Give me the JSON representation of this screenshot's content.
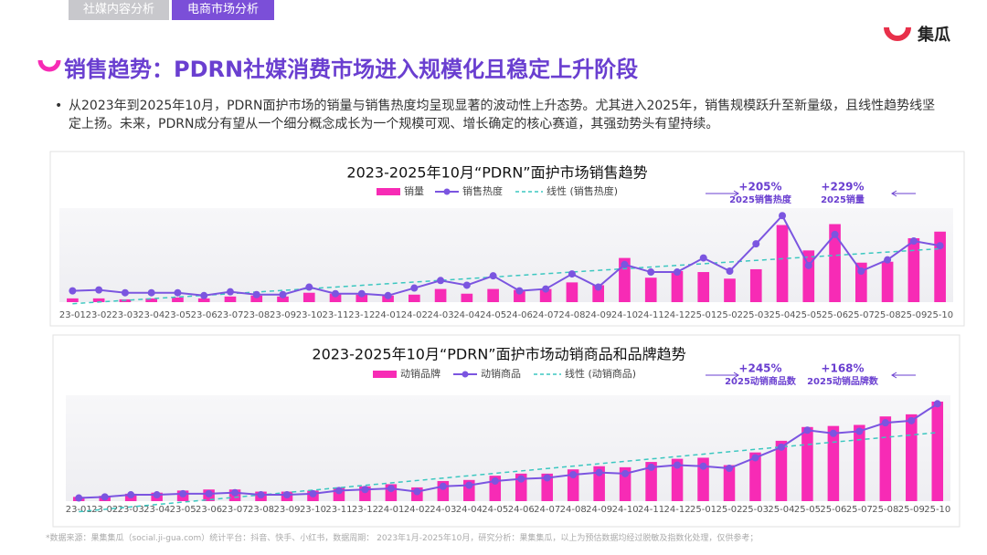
{
  "tabs": [
    "社媒内容分析",
    "电商市场分析"
  ],
  "logo": "集瓜",
  "title": "销售趋势：PDRN社媒消费市场进入规模化且稳定上升阶段",
  "bullet": "从2023年到2025年10月，PDRN面护市场的销量与销售热度均呈现显著的波动性上升态势。尤其进入2025年，销售规模跃升至新量级，且线性趋势线坚定上扬。未来，PDRN成分有望从一个细分概念成长为一个规模可观、增长确定的核心赛道，其强劲势头有望持续。",
  "footnote": "*数据来源：果集集瓜（social.ji-gua.com）统计平台：抖音、快手、小红书，数据周期： 2023年1月-2025年10月，研究分析：果集集瓜，以上为预估数据均经过脱敏及指数化处理，仅供参考；",
  "chart_data": [
    {
      "type": "combo",
      "title": "2023-2025年10月“PDRN”面护市场销售趋势",
      "categories": [
        "23-01",
        "23-02",
        "23-03",
        "23-04",
        "23-05",
        "23-06",
        "23-07",
        "23-08",
        "23-09",
        "23-10",
        "23-11",
        "23-12",
        "24-01",
        "24-02",
        "24-03",
        "24-04",
        "24-05",
        "24-06",
        "24-07",
        "24-08",
        "24-09",
        "24-10",
        "24-11",
        "24-12",
        "25-01",
        "25-02",
        "25-03",
        "25-04",
        "25-05",
        "25-06",
        "25-07",
        "25-08",
        "25-09",
        "25-10"
      ],
      "series": [
        {
          "name": "销量",
          "kind": "bar",
          "color": "#f72bb5",
          "values": [
            4,
            4,
            3,
            4,
            5,
            4,
            6,
            7,
            6,
            10,
            9,
            8,
            7,
            8,
            14,
            9,
            14,
            13,
            14,
            21,
            18,
            47,
            26,
            33,
            32,
            25,
            35,
            82,
            55,
            83,
            42,
            43,
            68,
            75
          ]
        },
        {
          "name": "销售热度",
          "kind": "line",
          "color": "#7b55e0",
          "values": [
            12,
            13,
            10,
            10,
            10,
            7,
            11,
            8,
            8,
            16,
            9,
            9,
            7,
            15,
            23,
            18,
            28,
            12,
            14,
            30,
            16,
            40,
            32,
            32,
            47,
            33,
            62,
            92,
            39,
            72,
            33,
            45,
            65,
            60
          ]
        }
      ],
      "trendline": {
        "name": "线性 (销售热度)",
        "color": "#3cc7c0"
      },
      "annotations": [
        {
          "text": "+205%",
          "label": "2025销售热度"
        },
        {
          "text": "+229%",
          "label": "2025销量"
        }
      ],
      "ylim": [
        0,
        100
      ]
    },
    {
      "type": "combo",
      "title": "2023-2025年10月“PDRN”面护市场动销商品和品牌趋势",
      "categories": [
        "23-01",
        "23-02",
        "23-03",
        "23-04",
        "23-05",
        "23-06",
        "23-07",
        "23-08",
        "23-09",
        "23-10",
        "23-11",
        "23-12",
        "24-01",
        "24-02",
        "24-03",
        "24-04",
        "24-05",
        "24-06",
        "24-07",
        "24-08",
        "24-09",
        "24-10",
        "24-11",
        "24-12",
        "25-01",
        "25-02",
        "25-03",
        "25-04",
        "25-05",
        "25-06",
        "25-07",
        "25-08",
        "25-09",
        "25-10"
      ],
      "series": [
        {
          "name": "动销品牌",
          "kind": "bar",
          "color": "#f72bb5",
          "values": [
            4,
            5,
            7,
            8,
            10,
            11,
            11,
            9,
            9,
            10,
            13,
            14,
            16,
            13,
            19,
            20,
            24,
            26,
            26,
            30,
            33,
            32,
            37,
            40,
            41,
            34,
            46,
            57,
            70,
            71,
            72,
            80,
            82,
            94
          ]
        },
        {
          "name": "动销商品",
          "kind": "line",
          "color": "#7b55e0",
          "values": [
            3,
            4,
            6,
            6,
            7,
            7,
            8,
            6,
            6,
            7,
            10,
            11,
            12,
            9,
            14,
            15,
            19,
            21,
            22,
            25,
            27,
            26,
            32,
            34,
            33,
            31,
            41,
            51,
            67,
            64,
            66,
            74,
            76,
            92
          ]
        }
      ],
      "trendline": {
        "name": "线性 (动销商品)",
        "color": "#3cc7c0"
      },
      "annotations": [
        {
          "text": "+245%",
          "label": "2025动销商品数"
        },
        {
          "text": "+168%",
          "label": "2025动销品牌数"
        }
      ],
      "ylim": [
        0,
        100
      ]
    }
  ]
}
